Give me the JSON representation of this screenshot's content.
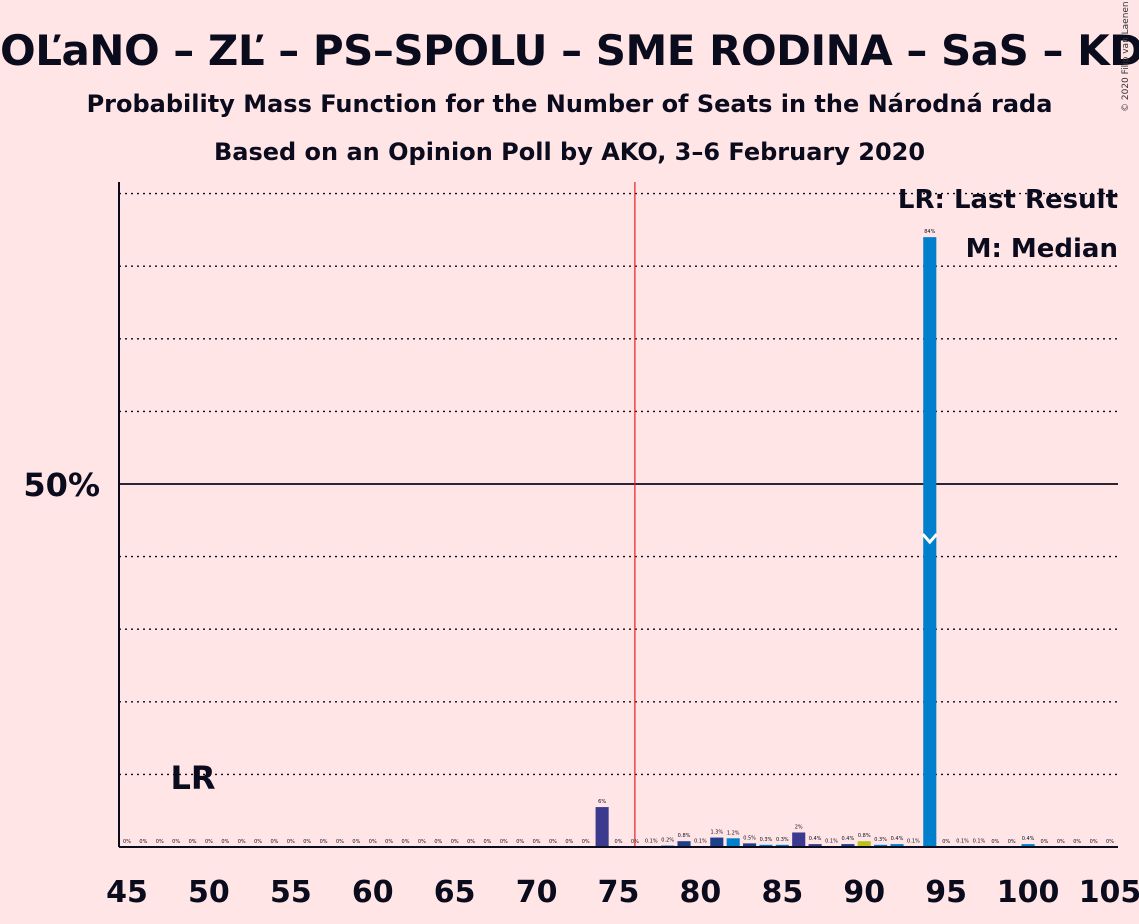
{
  "title": "OĽaNO – ZĽ – PS–SPOLU – SME RODINA – SaS – KDH",
  "subtitle": "Probability Mass Function for the Number of Seats in the Národná rada",
  "subtitle2": "Based on an Opinion Poll by AKO, 3–6 February 2020",
  "copyright": "© 2020 Filip van Laenen",
  "legend": {
    "lr": "LR: Last Result",
    "m": "M: Median"
  },
  "markers": {
    "lr_label": "LR",
    "majority_seats": 76,
    "median_seats": 94,
    "last_result_seats": 48
  },
  "colors": {
    "background": "#FFE5E5",
    "majority_line": "#E32020",
    "grid": "#0b0b1e"
  },
  "chart_data": {
    "type": "bar",
    "xlabel": "",
    "ylabel": "",
    "x_ticks": [
      45,
      50,
      55,
      60,
      65,
      70,
      75,
      80,
      85,
      90,
      95,
      100,
      105
    ],
    "y_ticks_labeled": [
      {
        "value": 50,
        "label": "50%"
      }
    ],
    "ylim": [
      0,
      100
    ],
    "xlim": [
      45,
      105
    ],
    "bars": [
      {
        "x": 45,
        "value": 0,
        "label": "0%",
        "color": "#0080CC"
      },
      {
        "x": 46,
        "value": 0,
        "label": "0%",
        "color": "#0080CC"
      },
      {
        "x": 47,
        "value": 0,
        "label": "0%",
        "color": "#0080CC"
      },
      {
        "x": 48,
        "value": 0,
        "label": "0%",
        "color": "#0080CC"
      },
      {
        "x": 49,
        "value": 0,
        "label": "0%",
        "color": "#0080CC"
      },
      {
        "x": 50,
        "value": 0,
        "label": "0%",
        "color": "#0080CC"
      },
      {
        "x": 51,
        "value": 0,
        "label": "0%",
        "color": "#0080CC"
      },
      {
        "x": 52,
        "value": 0,
        "label": "0%",
        "color": "#0080CC"
      },
      {
        "x": 53,
        "value": 0,
        "label": "0%",
        "color": "#0080CC"
      },
      {
        "x": 54,
        "value": 0,
        "label": "0%",
        "color": "#0080CC"
      },
      {
        "x": 55,
        "value": 0,
        "label": "0%",
        "color": "#0080CC"
      },
      {
        "x": 56,
        "value": 0,
        "label": "0%",
        "color": "#0080CC"
      },
      {
        "x": 57,
        "value": 0,
        "label": "0%",
        "color": "#0080CC"
      },
      {
        "x": 58,
        "value": 0,
        "label": "0%",
        "color": "#0080CC"
      },
      {
        "x": 59,
        "value": 0,
        "label": "0%",
        "color": "#0080CC"
      },
      {
        "x": 60,
        "value": 0,
        "label": "0%",
        "color": "#0080CC"
      },
      {
        "x": 61,
        "value": 0,
        "label": "0%",
        "color": "#0080CC"
      },
      {
        "x": 62,
        "value": 0,
        "label": "0%",
        "color": "#0080CC"
      },
      {
        "x": 63,
        "value": 0,
        "label": "0%",
        "color": "#0080CC"
      },
      {
        "x": 64,
        "value": 0,
        "label": "0%",
        "color": "#0080CC"
      },
      {
        "x": 65,
        "value": 0,
        "label": "0%",
        "color": "#0080CC"
      },
      {
        "x": 66,
        "value": 0,
        "label": "0%",
        "color": "#0080CC"
      },
      {
        "x": 67,
        "value": 0,
        "label": "0%",
        "color": "#0080CC"
      },
      {
        "x": 68,
        "value": 0,
        "label": "0%",
        "color": "#0080CC"
      },
      {
        "x": 69,
        "value": 0,
        "label": "0%",
        "color": "#0080CC"
      },
      {
        "x": 70,
        "value": 0,
        "label": "0%",
        "color": "#0080CC"
      },
      {
        "x": 71,
        "value": 0,
        "label": "0%",
        "color": "#0080CC"
      },
      {
        "x": 72,
        "value": 0,
        "label": "0%",
        "color": "#0080CC"
      },
      {
        "x": 73,
        "value": 0,
        "label": "0%",
        "color": "#0080CC"
      },
      {
        "x": 74,
        "value": 5.5,
        "label": "6%",
        "color": "#3C3A8F"
      },
      {
        "x": 75,
        "value": 0,
        "label": "0%",
        "color": "#0080CC"
      },
      {
        "x": 76,
        "value": 0,
        "label": "0%",
        "color": "#0080CC"
      },
      {
        "x": 77,
        "value": 0.1,
        "label": "0.1%",
        "color": "#0080CC"
      },
      {
        "x": 78,
        "value": 0.2,
        "label": "0.2%",
        "color": "#0080CC"
      },
      {
        "x": 79,
        "value": 0.8,
        "label": "0.8%",
        "color": "#1F3F8A"
      },
      {
        "x": 80,
        "value": 0.1,
        "label": "0.1%",
        "color": "#0080CC"
      },
      {
        "x": 81,
        "value": 1.3,
        "label": "1.3%",
        "color": "#1F3F8A"
      },
      {
        "x": 82,
        "value": 1.2,
        "label": "1.2%",
        "color": "#0080CC"
      },
      {
        "x": 83,
        "value": 0.5,
        "label": "0.5%",
        "color": "#1F3F8A"
      },
      {
        "x": 84,
        "value": 0.3,
        "label": "0.3%",
        "color": "#0080CC"
      },
      {
        "x": 85,
        "value": 0.3,
        "label": "0.3%",
        "color": "#0080CC"
      },
      {
        "x": 86,
        "value": 2,
        "label": "2%",
        "color": "#3C3A8F"
      },
      {
        "x": 87,
        "value": 0.4,
        "label": "0.4%",
        "color": "#3C3A8F"
      },
      {
        "x": 88,
        "value": 0.1,
        "label": "0.1%",
        "color": "#0080CC"
      },
      {
        "x": 89,
        "value": 0.4,
        "label": "0.4%",
        "color": "#1F3F8A"
      },
      {
        "x": 90,
        "value": 0.8,
        "label": "0.8%",
        "color": "#B8C21A"
      },
      {
        "x": 91,
        "value": 0.3,
        "label": "0.3%",
        "color": "#0080CC"
      },
      {
        "x": 92,
        "value": 0.4,
        "label": "0.4%",
        "color": "#0080CC"
      },
      {
        "x": 93,
        "value": 0.1,
        "label": "0.1%",
        "color": "#0080CC"
      },
      {
        "x": 94,
        "value": 84,
        "label": "84%",
        "color": "#0080CC"
      },
      {
        "x": 95,
        "value": 0,
        "label": "0%",
        "color": "#0080CC"
      },
      {
        "x": 96,
        "value": 0.1,
        "label": "0.1%",
        "color": "#0080CC"
      },
      {
        "x": 97,
        "value": 0.1,
        "label": "0.1%",
        "color": "#0080CC"
      },
      {
        "x": 98,
        "value": 0,
        "label": "0%",
        "color": "#0080CC"
      },
      {
        "x": 99,
        "value": 0,
        "label": "0%",
        "color": "#0080CC"
      },
      {
        "x": 100,
        "value": 0.4,
        "label": "0.4%",
        "color": "#0080CC"
      },
      {
        "x": 101,
        "value": 0,
        "label": "0%",
        "color": "#0080CC"
      },
      {
        "x": 102,
        "value": 0,
        "label": "0%",
        "color": "#0080CC"
      },
      {
        "x": 103,
        "value": 0,
        "label": "0%",
        "color": "#0080CC"
      },
      {
        "x": 104,
        "value": 0,
        "label": "0%",
        "color": "#0080CC"
      },
      {
        "x": 105,
        "value": 0,
        "label": "0%",
        "color": "#0080CC"
      }
    ]
  }
}
